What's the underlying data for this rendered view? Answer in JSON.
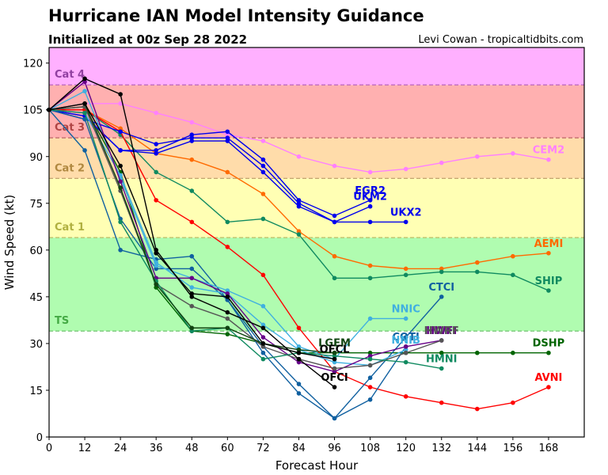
{
  "header": {
    "title": "Hurricane IAN Model Intensity Guidance",
    "subtitle": "Initialized at 00z Sep 28 2022",
    "credit": "Levi Cowan - tropicaltidbits.com"
  },
  "chart_data": {
    "type": "line",
    "title": "Hurricane IAN Model Intensity Guidance",
    "subtitle": "Initialized at 00z Sep 28 2022",
    "xlabel": "Forecast Hour",
    "ylabel": "Wind Speed (kt)",
    "xlim": [
      0,
      180
    ],
    "ylim": [
      0,
      125
    ],
    "xticks": [
      0,
      12,
      24,
      36,
      48,
      60,
      72,
      84,
      96,
      108,
      120,
      132,
      144,
      156,
      168
    ],
    "yticks": [
      0,
      15,
      30,
      45,
      60,
      75,
      90,
      105,
      120
    ],
    "grid": false,
    "bands": [
      {
        "label": "TS",
        "from": 34,
        "to": 64,
        "fill": "#b0fcb0",
        "label_color": "#44aa44",
        "line_color": "#66bb66"
      },
      {
        "label": "Cat 1",
        "from": 64,
        "to": 83,
        "fill": "#ffffb4",
        "label_color": "#b0b040",
        "line_color": "#bbbb66"
      },
      {
        "label": "Cat 2",
        "from": 83,
        "to": 96,
        "fill": "#ffdcaa",
        "label_color": "#b08840",
        "line_color": "#bb9966"
      },
      {
        "label": "Cat 3",
        "from": 96,
        "to": 113,
        "fill": "#ffb0b0",
        "label_color": "#b04444",
        "line_color": "#bb6666"
      },
      {
        "label": "Cat 4",
        "from": 113,
        "to": 125,
        "fill": "#ffb0ff",
        "label_color": "#9040a0",
        "line_color": "#bb66bb"
      }
    ],
    "series": [
      {
        "name": "CEM2",
        "color": "#ff80ff",
        "x": [
          0,
          12,
          24,
          36,
          48,
          60,
          72,
          84,
          96,
          108,
          120,
          132,
          144,
          156,
          168
        ],
        "values": [
          105,
          107,
          107,
          104,
          101,
          97,
          95,
          90,
          87,
          85,
          86,
          88,
          90,
          91,
          89
        ]
      },
      {
        "name": "AEMI",
        "color": "#ff6a00",
        "x": [
          0,
          12,
          24,
          36,
          48,
          60,
          72,
          84,
          96,
          108,
          120,
          132,
          144,
          156,
          168
        ],
        "values": [
          105,
          105,
          99,
          91,
          89,
          85,
          78,
          66,
          58,
          55,
          54,
          54,
          56,
          58,
          59
        ]
      },
      {
        "name": "SHIP",
        "color": "#108a60",
        "x": [
          0,
          12,
          24,
          36,
          48,
          60,
          72,
          84,
          96,
          108,
          120,
          132,
          144,
          156,
          168
        ],
        "values": [
          105,
          105,
          97,
          85,
          79,
          69,
          70,
          65,
          51,
          51,
          52,
          53,
          53,
          52,
          47
        ]
      },
      {
        "name": "DSHP",
        "color": "#006400",
        "x": [
          0,
          12,
          24,
          36,
          48,
          60,
          72,
          84,
          96,
          108,
          120,
          132,
          144,
          156,
          168
        ],
        "values": [
          105,
          106,
          85,
          48,
          34,
          33,
          30,
          27,
          27,
          27,
          27,
          27,
          27,
          27,
          27
        ]
      },
      {
        "name": "AVNI",
        "color": "#ff0000",
        "x": [
          0,
          12,
          24,
          36,
          48,
          60,
          72,
          84,
          96,
          108,
          120,
          132,
          144,
          156,
          168
        ],
        "values": [
          105,
          105,
          98,
          76,
          69,
          61,
          52,
          35,
          21,
          16,
          13,
          11,
          9,
          11,
          16
        ]
      },
      {
        "name": "EGR2",
        "color": "#0000ee",
        "x": [
          0,
          12,
          24,
          36,
          48,
          60,
          72,
          84,
          96,
          108
        ],
        "values": [
          105,
          103,
          92,
          92,
          97,
          98,
          89,
          76,
          71,
          76
        ]
      },
      {
        "name": "UKM2",
        "color": "#0000ee",
        "x": [
          0,
          12,
          24,
          36,
          48,
          60,
          72,
          84,
          96,
          108
        ],
        "values": [
          105,
          102,
          98,
          94,
          96,
          96,
          87,
          75,
          69,
          74
        ]
      },
      {
        "name": "UKX2",
        "color": "#0000ee",
        "x": [
          0,
          12,
          24,
          36,
          48,
          60,
          72,
          84,
          96,
          108,
          120
        ],
        "values": [
          105,
          103,
          92,
          91,
          95,
          95,
          85,
          74,
          69,
          69,
          69
        ]
      },
      {
        "name": "CTCI",
        "color": "#1060a0",
        "x": [
          0,
          12,
          24,
          36,
          48,
          60,
          72,
          84,
          96,
          108,
          120,
          132
        ],
        "values": [
          105,
          92,
          60,
          57,
          58,
          44,
          29,
          17,
          6,
          19,
          32,
          45
        ]
      },
      {
        "name": "COTI",
        "color": "#1060a0",
        "x": [
          0,
          12,
          24,
          36,
          48,
          60,
          72,
          84,
          96,
          108,
          120
        ],
        "values": [
          105,
          102,
          70,
          54,
          54,
          44,
          27,
          14,
          6,
          12,
          29
        ]
      },
      {
        "name": "NNIC",
        "color": "#40b0e0",
        "x": [
          0,
          12,
          24,
          36,
          48,
          60,
          72,
          84,
          96,
          108,
          120
        ],
        "values": [
          105,
          111,
          83,
          55,
          51,
          47,
          42,
          29,
          25,
          38,
          38
        ]
      },
      {
        "name": "NNIB",
        "color": "#40b0e0",
        "x": [
          0,
          12,
          24,
          36,
          48,
          60,
          72,
          84,
          96,
          108,
          120
        ],
        "values": [
          105,
          104,
          84,
          56,
          48,
          46,
          36,
          28,
          24,
          23,
          28
        ]
      },
      {
        "name": "HWFI",
        "color": "#660088",
        "x": [
          0,
          12,
          24,
          36,
          48,
          60,
          72,
          84,
          96,
          108,
          120,
          132
        ],
        "values": [
          105,
          114,
          82,
          51,
          51,
          46,
          32,
          24,
          21,
          26,
          29,
          31
        ]
      },
      {
        "name": "HWRF",
        "color": "#555555",
        "x": [
          0,
          12,
          24,
          36,
          48,
          60,
          72,
          84,
          96,
          108,
          120,
          132
        ],
        "values": [
          105,
          106,
          79,
          49,
          42,
          38,
          29,
          25,
          22,
          23,
          27,
          31
        ]
      },
      {
        "name": "HMNI",
        "color": "#108a60",
        "x": [
          0,
          12,
          24,
          36,
          48,
          60,
          72,
          84,
          96,
          108,
          120,
          132
        ],
        "values": [
          105,
          104,
          69,
          50,
          34,
          35,
          25,
          27,
          26,
          25,
          24,
          22
        ]
      },
      {
        "name": "LGEM",
        "color": "#114411",
        "x": [
          0,
          12,
          24,
          36,
          48,
          60,
          72,
          84,
          96
        ],
        "values": [
          105,
          107,
          80,
          49,
          35,
          35,
          30,
          28,
          27
        ]
      },
      {
        "name": "OFCL",
        "color": "#000000",
        "x": [
          0,
          12,
          24,
          36,
          48,
          60,
          72,
          84,
          96
        ],
        "values": [
          105,
          107,
          87,
          59,
          46,
          45,
          30,
          27,
          25
        ]
      },
      {
        "name": "OFCI",
        "color": "#000000",
        "x": [
          0,
          12,
          24,
          36,
          48,
          60,
          72,
          84,
          96
        ],
        "values": [
          105,
          115,
          110,
          60,
          45,
          40,
          35,
          25,
          16
        ]
      }
    ]
  }
}
